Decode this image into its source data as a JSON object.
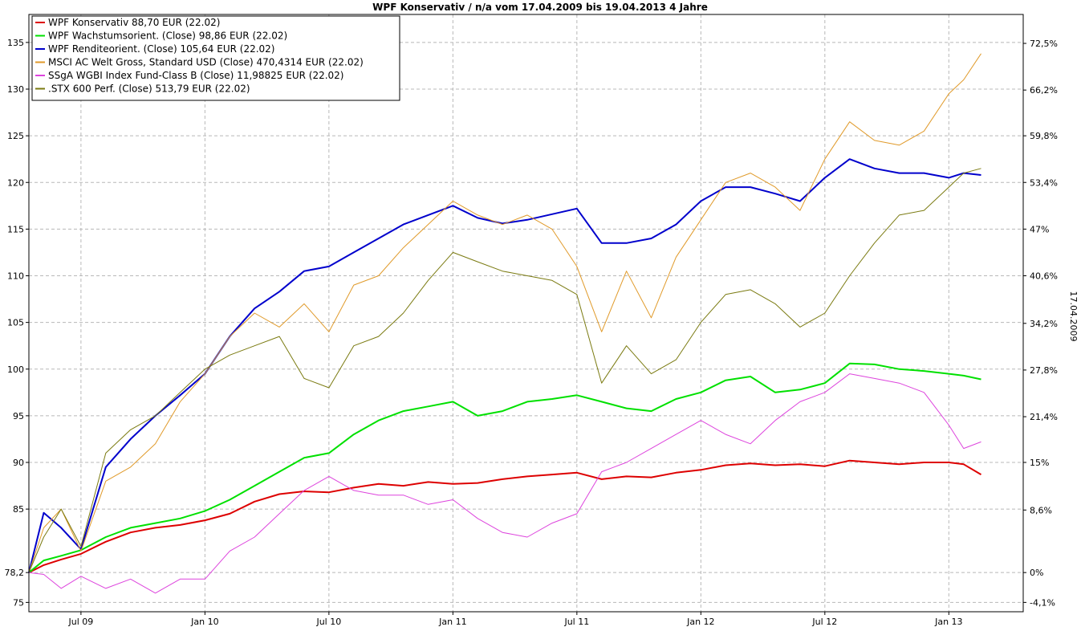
{
  "chart_data": {
    "type": "line",
    "title": "WPF Konservativ / n/a vom 17.04.2009 bis 19.04.2013 4 Jahre",
    "right_axis_label": "17.04.2009",
    "ylim": [
      74,
      138
    ],
    "xlim": [
      2009.29,
      2013.3
    ],
    "grid": true,
    "legend_position": "top-left",
    "left_ticks": [
      "135",
      "130",
      "125",
      "120",
      "115",
      "110",
      "105",
      "100",
      "95",
      "90",
      "85",
      "78,2",
      "75"
    ],
    "left_tick_values": [
      135,
      130,
      125,
      120,
      115,
      110,
      105,
      100,
      95,
      90,
      85,
      78.2,
      75
    ],
    "right_ticks": [
      "72,5%",
      "66,2%",
      "59,8%",
      "53,4%",
      "47%",
      "40,6%",
      "34,2%",
      "27,8%",
      "21,4%",
      "15%",
      "8,6%",
      "0%",
      "-4,1%"
    ],
    "right_tick_values": [
      134.9,
      129.9,
      125.0,
      120.0,
      115.0,
      110.0,
      104.9,
      99.9,
      94.9,
      90.0,
      84.9,
      78.2,
      75.0
    ],
    "x_ticks": [
      "Jul 09",
      "Jan 10",
      "Jul 10",
      "Jan 11",
      "Jul 11",
      "Jan 12",
      "Jul 12",
      "Jan 13"
    ],
    "x_tick_values": [
      2009.5,
      2010.0,
      2010.5,
      2011.0,
      2011.5,
      2012.0,
      2012.5,
      2013.0
    ],
    "series": [
      {
        "name": "WPF Konservativ 88,70 EUR (22.02)",
        "color": "#dd0000",
        "width": 2,
        "x": [
          2009.29,
          2009.35,
          2009.42,
          2009.5,
          2009.6,
          2009.7,
          2009.8,
          2009.9,
          2010.0,
          2010.1,
          2010.2,
          2010.3,
          2010.4,
          2010.5,
          2010.6,
          2010.7,
          2010.8,
          2010.9,
          2011.0,
          2011.1,
          2011.2,
          2011.3,
          2011.4,
          2011.5,
          2011.6,
          2011.7,
          2011.8,
          2011.9,
          2012.0,
          2012.1,
          2012.2,
          2012.3,
          2012.4,
          2012.5,
          2012.6,
          2012.7,
          2012.8,
          2012.9,
          2013.0,
          2013.06,
          2013.13
        ],
        "values": [
          78.2,
          79.0,
          79.6,
          80.2,
          81.5,
          82.5,
          83.0,
          83.3,
          83.8,
          84.5,
          85.8,
          86.6,
          86.9,
          86.8,
          87.3,
          87.7,
          87.5,
          87.9,
          87.7,
          87.8,
          88.2,
          88.5,
          88.7,
          88.9,
          88.2,
          88.5,
          88.4,
          88.9,
          89.2,
          89.7,
          89.9,
          89.7,
          89.8,
          89.6,
          90.2,
          90.0,
          89.8,
          90.0,
          90.0,
          89.8,
          88.7
        ]
      },
      {
        "name": "WPF Wachstumsorient. (Close) 98,86 EUR (22.02)",
        "color": "#00e000",
        "width": 2,
        "x": [
          2009.29,
          2009.35,
          2009.42,
          2009.5,
          2009.6,
          2009.7,
          2009.8,
          2009.9,
          2010.0,
          2010.1,
          2010.2,
          2010.3,
          2010.4,
          2010.5,
          2010.6,
          2010.7,
          2010.8,
          2010.9,
          2011.0,
          2011.1,
          2011.2,
          2011.3,
          2011.4,
          2011.5,
          2011.6,
          2011.7,
          2011.8,
          2011.9,
          2012.0,
          2012.1,
          2012.2,
          2012.3,
          2012.4,
          2012.5,
          2012.6,
          2012.7,
          2012.8,
          2012.9,
          2013.0,
          2013.06,
          2013.13
        ],
        "values": [
          78.2,
          79.5,
          80.0,
          80.6,
          82.0,
          83.0,
          83.5,
          84.0,
          84.8,
          86.0,
          87.5,
          89.0,
          90.5,
          91.0,
          93.0,
          94.5,
          95.5,
          96.0,
          96.5,
          95.0,
          95.5,
          96.5,
          96.8,
          97.2,
          96.5,
          95.8,
          95.5,
          96.8,
          97.5,
          98.8,
          99.2,
          97.5,
          97.8,
          98.5,
          100.6,
          100.5,
          100.0,
          99.8,
          99.5,
          99.3,
          98.9
        ]
      },
      {
        "name": "WPF Renditeorient. (Close) 105,64 EUR (22.02)",
        "color": "#0000cc",
        "width": 2,
        "x": [
          2009.29,
          2009.35,
          2009.42,
          2009.5,
          2009.6,
          2009.7,
          2009.8,
          2009.9,
          2010.0,
          2010.1,
          2010.2,
          2010.3,
          2010.4,
          2010.5,
          2010.6,
          2010.7,
          2010.8,
          2010.9,
          2011.0,
          2011.1,
          2011.2,
          2011.3,
          2011.4,
          2011.5,
          2011.6,
          2011.7,
          2011.8,
          2011.9,
          2012.0,
          2012.1,
          2012.2,
          2012.3,
          2012.4,
          2012.5,
          2012.6,
          2012.7,
          2012.8,
          2012.9,
          2013.0,
          2013.06,
          2013.13
        ],
        "values": [
          78.2,
          84.6,
          83.0,
          80.7,
          89.5,
          92.5,
          95.0,
          97.2,
          99.5,
          103.5,
          106.5,
          108.3,
          110.5,
          111.0,
          112.5,
          114.0,
          115.5,
          116.5,
          117.5,
          116.2,
          115.6,
          116.0,
          116.6,
          117.2,
          113.5,
          113.5,
          114.0,
          115.5,
          118.0,
          119.5,
          119.5,
          118.8,
          118.0,
          120.5,
          122.5,
          121.5,
          121.0,
          121.0,
          120.5,
          121.0,
          120.8
        ]
      },
      {
        "name": "MSCI AC Welt Gross, Standard USD (Close) 470,4314 EUR (22.02)",
        "color": "#e09a2a",
        "width": 1,
        "x": [
          2009.29,
          2009.35,
          2009.42,
          2009.5,
          2009.6,
          2009.7,
          2009.8,
          2009.9,
          2010.0,
          2010.1,
          2010.2,
          2010.3,
          2010.4,
          2010.5,
          2010.6,
          2010.7,
          2010.8,
          2010.9,
          2011.0,
          2011.1,
          2011.2,
          2011.3,
          2011.4,
          2011.5,
          2011.6,
          2011.7,
          2011.8,
          2011.9,
          2012.0,
          2012.1,
          2012.2,
          2012.3,
          2012.4,
          2012.5,
          2012.6,
          2012.7,
          2012.8,
          2012.9,
          2013.0,
          2013.06,
          2013.13
        ],
        "values": [
          78.2,
          83.0,
          85.0,
          80.5,
          88.0,
          89.5,
          92.0,
          96.5,
          99.5,
          103.5,
          106.0,
          104.5,
          107.0,
          104.0,
          109.0,
          110.0,
          113.0,
          115.5,
          118.0,
          116.5,
          115.5,
          116.5,
          115.0,
          111.0,
          104.0,
          110.5,
          105.5,
          112.0,
          116.0,
          120.0,
          121.0,
          119.5,
          117.0,
          122.5,
          126.5,
          124.5,
          124.0,
          125.5,
          129.5,
          131.0,
          133.8
        ]
      },
      {
        "name": "SSgA WGBI Index Fund-Class B (Close) 11,98825 EUR (22.02)",
        "color": "#dd44dd",
        "width": 1,
        "x": [
          2009.29,
          2009.35,
          2009.42,
          2009.5,
          2009.6,
          2009.7,
          2009.8,
          2009.9,
          2010.0,
          2010.1,
          2010.2,
          2010.3,
          2010.4,
          2010.5,
          2010.6,
          2010.7,
          2010.8,
          2010.9,
          2011.0,
          2011.1,
          2011.2,
          2011.3,
          2011.4,
          2011.5,
          2011.6,
          2011.7,
          2011.8,
          2011.9,
          2012.0,
          2012.1,
          2012.2,
          2012.3,
          2012.4,
          2012.5,
          2012.6,
          2012.7,
          2012.8,
          2012.9,
          2013.0,
          2013.06,
          2013.13
        ],
        "values": [
          78.2,
          78.0,
          76.5,
          77.8,
          76.5,
          77.5,
          76.0,
          77.5,
          77.5,
          80.5,
          82.0,
          84.5,
          87.0,
          88.5,
          87.0,
          86.5,
          86.5,
          85.5,
          86.0,
          84.0,
          82.5,
          82.0,
          83.5,
          84.5,
          89.0,
          90.0,
          91.5,
          93.0,
          94.5,
          93.0,
          92.0,
          94.5,
          96.5,
          97.5,
          99.5,
          99.0,
          98.5,
          97.5,
          94.0,
          91.5,
          92.2
        ]
      },
      {
        "name": ".STX 600 Perf. (Close) 513,79 EUR (22.02)",
        "color": "#7a7a10",
        "width": 1,
        "x": [
          2009.29,
          2009.35,
          2009.42,
          2009.5,
          2009.6,
          2009.7,
          2009.8,
          2009.9,
          2010.0,
          2010.1,
          2010.2,
          2010.3,
          2010.4,
          2010.5,
          2010.6,
          2010.7,
          2010.8,
          2010.9,
          2011.0,
          2011.1,
          2011.2,
          2011.3,
          2011.4,
          2011.5,
          2011.6,
          2011.7,
          2011.8,
          2011.9,
          2012.0,
          2012.1,
          2012.2,
          2012.3,
          2012.4,
          2012.5,
          2012.6,
          2012.7,
          2012.8,
          2012.9,
          2013.0,
          2013.06,
          2013.13
        ],
        "values": [
          78.2,
          82.0,
          85.0,
          81.0,
          91.0,
          93.5,
          95.0,
          97.5,
          100.0,
          101.5,
          102.5,
          103.5,
          99.0,
          98.0,
          102.5,
          103.5,
          106.0,
          109.5,
          112.5,
          111.5,
          110.5,
          110.0,
          109.5,
          108.0,
          98.5,
          102.5,
          99.5,
          101.0,
          105.0,
          108.0,
          108.5,
          107.0,
          104.5,
          106.0,
          110.0,
          113.5,
          116.5,
          117.0,
          119.5,
          121.0,
          121.5
        ]
      }
    ]
  }
}
